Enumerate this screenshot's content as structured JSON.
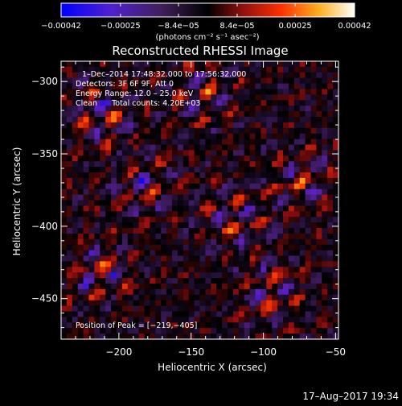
{
  "chart_data": {
    "type": "heatmap",
    "title": "Reconstructed RHESSI Image",
    "xlabel": "Heliocentric X (arcsec)",
    "ylabel": "Heliocentric Y (arcsec)",
    "xlim": [
      -240,
      -48
    ],
    "ylim": [
      -478,
      -286
    ],
    "x_ticks": [
      -200,
      -150,
      -100,
      -50
    ],
    "x_tick_labels": [
      "−200",
      "−150",
      "−100",
      "−50"
    ],
    "y_ticks": [
      -300,
      -350,
      -400,
      -450
    ],
    "y_tick_labels": [
      "−300",
      "−350",
      "−400",
      "−450"
    ],
    "colorbar": {
      "min": -0.00042,
      "max": 0.00042,
      "ticks": [
        -0.00042,
        -0.00025,
        -8.4e-05,
        8.4e-05,
        0.00025,
        0.00042
      ],
      "tick_labels": [
        "−0.00042",
        "−0.00025",
        "−8.4e−05",
        "8.4e−05",
        "0.00025",
        "0.00042"
      ],
      "units_label": "(photons cm⁻² s⁻¹ asec⁻²)"
    },
    "annotations": [
      "1–Dec–2014 17:48:32.000 to 17:56:32.000",
      "Detectors: 3F 6F 9F, Att 0",
      "Energy Range: 12.0 – 25.0 keV",
      "Clean      Total counts: 4.20E+03"
    ],
    "peak_label": "Position of Peak = [−219,−405]",
    "peak_position": [
      -219,
      -405
    ],
    "total_counts": 4200,
    "energy_range_kev": [
      12.0,
      25.0
    ],
    "grid": false,
    "colormap": [
      "#0000ff",
      "#6020c0",
      "#3a1a5a",
      "#000000",
      "#a01010",
      "#ff4000",
      "#ffc020",
      "#ffffff"
    ]
  },
  "timestamp": "17–Aug–2017 19:34"
}
